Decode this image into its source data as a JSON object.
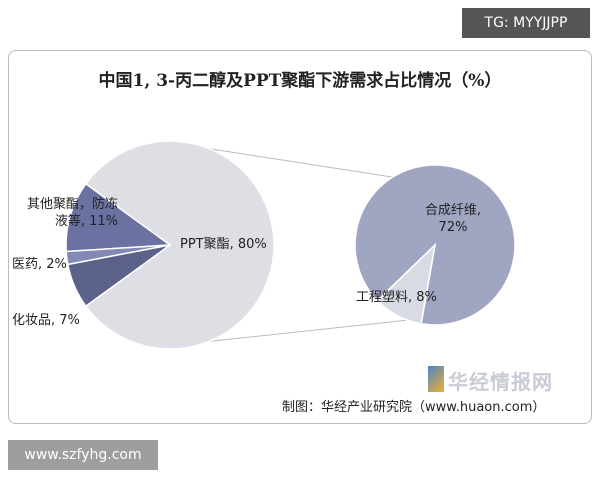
{
  "chart_data": {
    "type": "pie-of-pie",
    "title": "中国1, 3-丙二醇及PPT聚酯下游需求占比情况（%）",
    "source": "制图：华经产业研究院（www.huaon.com）",
    "values": [
      80,
      11,
      2,
      7
    ],
    "value_labels": [
      "PPT聚酯, 80%",
      "其他聚酯，防冻液等, 11%",
      "医药, 2%",
      "化妆品, 7%"
    ],
    "colors": [
      "#dedfe5",
      "#6b72a2",
      "#8289b4",
      "#5b6189"
    ],
    "secondary": {
      "values": [
        72,
        8
      ],
      "value_labels": [
        "合成纤维, 72%",
        "工程塑料, 8%"
      ],
      "colors": [
        "#a0a6c2",
        "#d9dbe4"
      ]
    }
  },
  "watermark_top": "TG: MYYJJPP",
  "watermark_bottom": "www.szfyhg.com",
  "logo_text": "华经情报网"
}
